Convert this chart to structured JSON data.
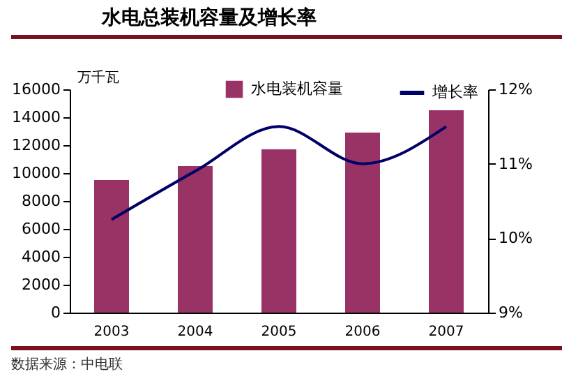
{
  "chart_data": {
    "type": "bar",
    "title": "水电总装机容量及增长率",
    "ylabel": "万千瓦",
    "annotations": [
      "数据来源：中电联"
    ],
    "categories": [
      "2003",
      "2004",
      "2005",
      "2006",
      "2007"
    ],
    "series": [
      {
        "name": "水电装机容量",
        "color": "#993366",
        "values": [
          9500,
          10500,
          11700,
          12900,
          14500
        ]
      },
      {
        "name": "增长率",
        "type": "line",
        "axis": "y2",
        "color": "#000066",
        "values": [
          10.25,
          10.9,
          11.5,
          11.0,
          11.5
        ]
      }
    ],
    "ylim": [
      0,
      16000
    ],
    "yticks": [
      0,
      2000,
      4000,
      6000,
      8000,
      10000,
      12000,
      14000,
      16000
    ],
    "y2lim": [
      9,
      12
    ],
    "y2ticks": [
      {
        "value": 9,
        "label": "9%"
      },
      {
        "value": 10,
        "label": "10%"
      },
      {
        "value": 11,
        "label": "11%"
      },
      {
        "value": 12,
        "label": "12%"
      }
    ],
    "legend": "top",
    "grid": false
  }
}
